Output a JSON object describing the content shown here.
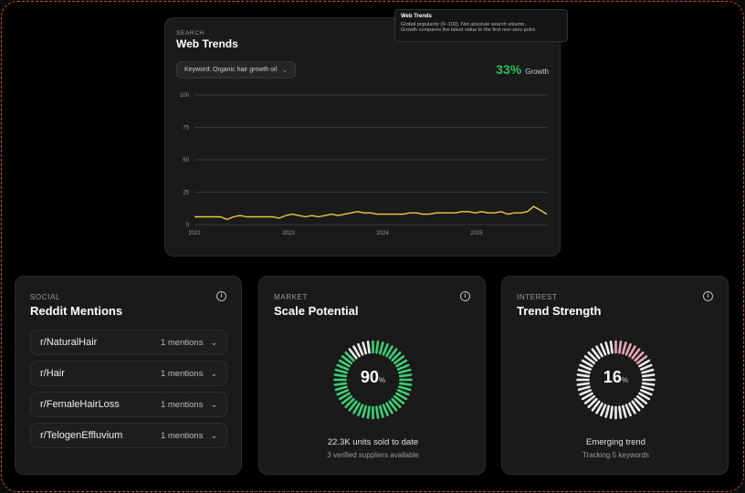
{
  "trends": {
    "eyebrow": "SEARCH",
    "title": "Web Trends",
    "keyword_select": "Keyword: Organic hair growth oil",
    "growth_value": "33%",
    "growth_label": "Growth",
    "tooltip": {
      "title": "Web Trends",
      "line1": "Global popularity (0–100). Not absolute search volume.",
      "line2": "Growth compares the latest value to the first non-zero point."
    }
  },
  "chart_data": {
    "type": "line",
    "x_ticks": [
      "2022",
      "2023",
      "2024",
      "2025"
    ],
    "y_ticks": [
      0,
      25,
      50,
      75,
      100
    ],
    "ylim": [
      0,
      100
    ],
    "grid": true,
    "series": [
      {
        "color": "#f5c542",
        "values": [
          6,
          6,
          6,
          6,
          6,
          4,
          6,
          7,
          6,
          6,
          6,
          6,
          6,
          5,
          7,
          8,
          7,
          6,
          7,
          6,
          7,
          8,
          7,
          8,
          9,
          10,
          9,
          9,
          8,
          8,
          8,
          8,
          8,
          9,
          9,
          8,
          8,
          9,
          9,
          9,
          9,
          10,
          10,
          9,
          10,
          9,
          9,
          10,
          8,
          9,
          9,
          10,
          14,
          11,
          8
        ]
      }
    ]
  },
  "reddit": {
    "eyebrow": "SOCIAL",
    "title": "Reddit Mentions",
    "items": [
      {
        "name": "r/NaturalHair",
        "count": "1 mentions"
      },
      {
        "name": "r/Hair",
        "count": "1 mentions"
      },
      {
        "name": "r/FemaleHairLoss",
        "count": "1 mentions"
      },
      {
        "name": "r/TelogenEffluvium",
        "count": "1 mentions"
      }
    ]
  },
  "scale": {
    "eyebrow": "MARKET",
    "title": "Scale Potential",
    "value": "90",
    "value_num": 90,
    "pct": "%",
    "caption": "22.3K units sold to date",
    "sub": "3 verified suppliers available",
    "color": "#3ecf74"
  },
  "interest": {
    "eyebrow": "INTEREST",
    "title": "Trend Strength",
    "value": "16",
    "value_num": 16,
    "pct": "%",
    "caption": "Emerging trend",
    "sub": "Tracking 5 keywords",
    "color": "#e8a8b4"
  },
  "icons": {
    "info": "info-icon",
    "chevron": "chevron-down-icon"
  }
}
